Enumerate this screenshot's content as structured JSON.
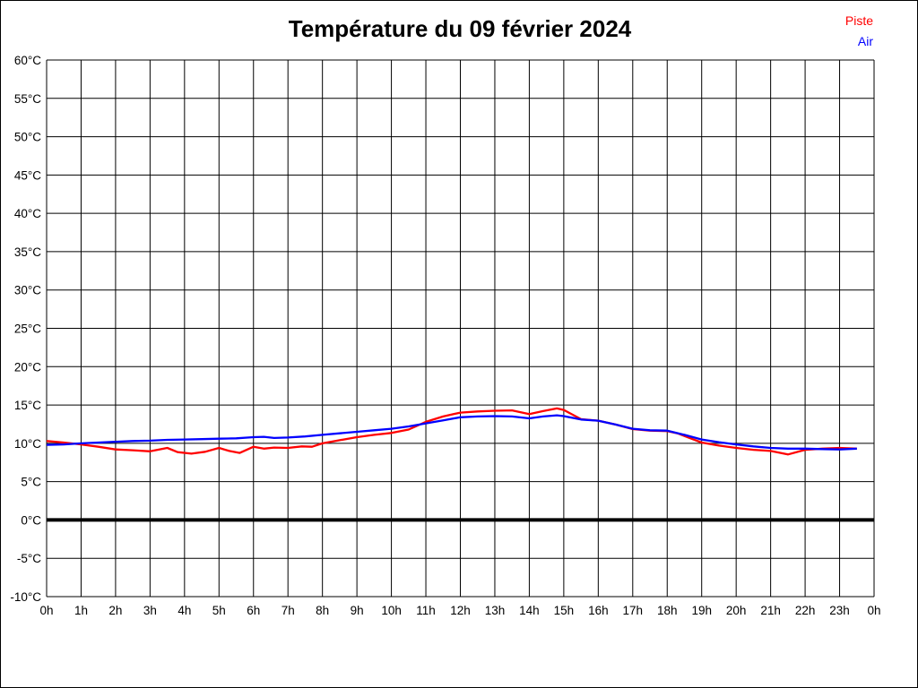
{
  "title": "Température du 09 février 2024",
  "legend": {
    "piste_label": "Piste",
    "air_label": "Air"
  },
  "colors": {
    "piste": "#ff0000",
    "air": "#0000ff",
    "grid": "#000000",
    "zero_line": "#000000",
    "background": "#ffffff",
    "text": "#000000"
  },
  "chart_data": {
    "type": "line",
    "title": "Température du 09 février 2024",
    "xlabel": "",
    "ylabel": "",
    "xlim": [
      0,
      24
    ],
    "ylim": [
      -10,
      60
    ],
    "x_tick_step": 1,
    "y_tick_step": 5,
    "grid": true,
    "zero_line_value": 0,
    "legend_position": "top-right",
    "x_tick_labels": [
      "0h",
      "1h",
      "2h",
      "3h",
      "4h",
      "5h",
      "6h",
      "7h",
      "8h",
      "9h",
      "10h",
      "11h",
      "12h",
      "13h",
      "14h",
      "15h",
      "16h",
      "17h",
      "18h",
      "19h",
      "20h",
      "21h",
      "22h",
      "23h",
      "0h"
    ],
    "y_tick_labels": [
      "60°C",
      "55°C",
      "50°C",
      "45°C",
      "40°C",
      "35°C",
      "30°C",
      "25°C",
      "20°C",
      "15°C",
      "10°C",
      "5°C",
      "0°C",
      "-5°C",
      "-10°C"
    ],
    "series": [
      {
        "name": "Piste",
        "color": "#ff0000",
        "points": [
          [
            0,
            10.3
          ],
          [
            0.5,
            10.1
          ],
          [
            1,
            9.85
          ],
          [
            1.5,
            9.55
          ],
          [
            2,
            9.2
          ],
          [
            2.5,
            9.1
          ],
          [
            3,
            8.95
          ],
          [
            3.5,
            9.4
          ],
          [
            3.8,
            8.85
          ],
          [
            4.2,
            8.65
          ],
          [
            4.6,
            8.9
          ],
          [
            5,
            9.4
          ],
          [
            5.3,
            9.0
          ],
          [
            5.6,
            8.75
          ],
          [
            6,
            9.55
          ],
          [
            6.3,
            9.3
          ],
          [
            6.6,
            9.45
          ],
          [
            7,
            9.4
          ],
          [
            7.4,
            9.6
          ],
          [
            7.7,
            9.55
          ],
          [
            8,
            10.0
          ],
          [
            8.5,
            10.4
          ],
          [
            9,
            10.8
          ],
          [
            9.5,
            11.1
          ],
          [
            10,
            11.35
          ],
          [
            10.5,
            11.8
          ],
          [
            11,
            12.8
          ],
          [
            11.5,
            13.5
          ],
          [
            12,
            14.0
          ],
          [
            12.5,
            14.15
          ],
          [
            13,
            14.25
          ],
          [
            13.5,
            14.3
          ],
          [
            14,
            13.8
          ],
          [
            14.4,
            14.2
          ],
          [
            14.8,
            14.55
          ],
          [
            15,
            14.35
          ],
          [
            15.5,
            13.15
          ],
          [
            16,
            12.95
          ],
          [
            16.5,
            12.45
          ],
          [
            17,
            11.85
          ],
          [
            17.5,
            11.65
          ],
          [
            18,
            11.6
          ],
          [
            18.3,
            11.3
          ],
          [
            18.7,
            10.6
          ],
          [
            19,
            10.1
          ],
          [
            19.5,
            9.7
          ],
          [
            20,
            9.4
          ],
          [
            20.5,
            9.15
          ],
          [
            21,
            9.0
          ],
          [
            21.5,
            8.55
          ],
          [
            22,
            9.15
          ],
          [
            22.5,
            9.3
          ],
          [
            23,
            9.4
          ],
          [
            23.5,
            9.3
          ]
        ]
      },
      {
        "name": "Air",
        "color": "#0000ff",
        "points": [
          [
            0,
            9.8
          ],
          [
            0.5,
            9.85
          ],
          [
            1,
            10.0
          ],
          [
            1.5,
            10.1
          ],
          [
            2,
            10.2
          ],
          [
            2.5,
            10.3
          ],
          [
            3,
            10.35
          ],
          [
            3.5,
            10.45
          ],
          [
            4,
            10.5
          ],
          [
            4.5,
            10.55
          ],
          [
            5,
            10.6
          ],
          [
            5.5,
            10.65
          ],
          [
            6,
            10.8
          ],
          [
            6.3,
            10.85
          ],
          [
            6.6,
            10.7
          ],
          [
            7,
            10.75
          ],
          [
            7.5,
            10.9
          ],
          [
            8,
            11.1
          ],
          [
            8.5,
            11.3
          ],
          [
            9,
            11.5
          ],
          [
            9.5,
            11.7
          ],
          [
            10,
            11.9
          ],
          [
            10.5,
            12.2
          ],
          [
            11,
            12.6
          ],
          [
            11.5,
            13.0
          ],
          [
            12,
            13.4
          ],
          [
            12.5,
            13.5
          ],
          [
            13,
            13.55
          ],
          [
            13.5,
            13.5
          ],
          [
            14,
            13.25
          ],
          [
            14.4,
            13.5
          ],
          [
            14.8,
            13.65
          ],
          [
            15,
            13.55
          ],
          [
            15.5,
            13.1
          ],
          [
            16,
            12.95
          ],
          [
            16.5,
            12.45
          ],
          [
            17,
            11.9
          ],
          [
            17.5,
            11.7
          ],
          [
            18,
            11.65
          ],
          [
            18.5,
            11.1
          ],
          [
            19,
            10.5
          ],
          [
            19.5,
            10.15
          ],
          [
            20,
            9.85
          ],
          [
            20.5,
            9.6
          ],
          [
            21,
            9.4
          ],
          [
            21.5,
            9.3
          ],
          [
            22,
            9.3
          ],
          [
            22.5,
            9.25
          ],
          [
            23,
            9.2
          ],
          [
            23.5,
            9.3
          ]
        ]
      }
    ]
  }
}
